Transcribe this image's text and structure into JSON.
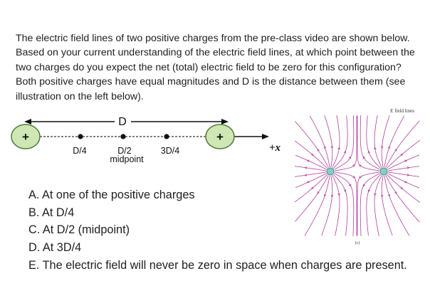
{
  "question": "The electric field lines of two positive charges from the pre-class video are shown below. Based on your current understanding of the electric field lines,  at which point between the two charges do you expect the net (total) electric field to be zero for this configuration? Both positive charges have equal magnitudes and D is the distance between them (see illustration on the left below).",
  "diagram": {
    "charge_symbol": "+",
    "distance_label": "D",
    "axis_label": "+x",
    "points": [
      {
        "label": "D/4"
      },
      {
        "label": "D/2"
      },
      {
        "label": "3D/4"
      }
    ],
    "midpoint_label": "midpoint"
  },
  "figure": {
    "title": "E field lines",
    "caption": "(c)",
    "line_color": "#b23ea0",
    "charge_fill": "#7fd0c8"
  },
  "choices": [
    "A. At one of the positive charges",
    "B. At D/4",
    "C. At D/2 (midpoint)",
    "D. At 3D/4",
    "E. The electric field will never be zero in space when charges are present."
  ]
}
